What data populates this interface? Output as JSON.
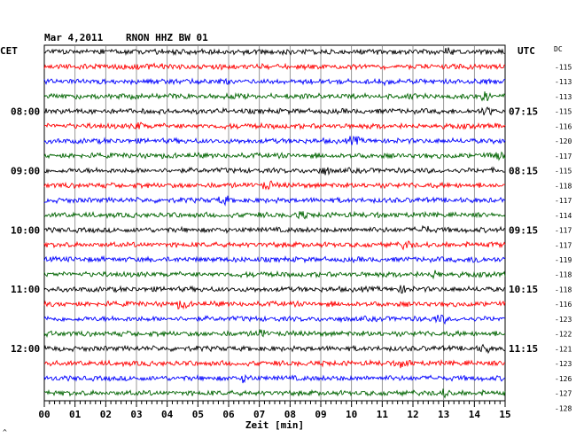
{
  "header": {
    "date": "Mar 4,2011",
    "station": "RNON HHZ BW 01",
    "left_zone": "CET",
    "right_zone": "UTC",
    "dc_label": "DC"
  },
  "chart_data": {
    "type": "line",
    "title": "Mar 4,2011   RNON HHZ BW 01",
    "xlabel": "Zeit [min]",
    "xlim": [
      0,
      15
    ],
    "x_ticks": [
      "00",
      "01",
      "02",
      "03",
      "04",
      "05",
      "06",
      "07",
      "08",
      "09",
      "10",
      "11",
      "12",
      "13",
      "14",
      "15"
    ],
    "traces_per_hour": 4,
    "trace_colors": [
      "#000000",
      "#ff0000",
      "#0000ff",
      "#006400"
    ],
    "dc_offsets": [
      -115,
      -113,
      -113,
      -115,
      -116,
      -120,
      -117,
      -115,
      -118,
      -117,
      -114,
      -117,
      -117,
      -119,
      -118,
      -118,
      -116,
      -123,
      -122,
      -121,
      -123,
      -126,
      -127,
      -128
    ],
    "left_hour_labels": [
      "08:00",
      "09:00",
      "10:00",
      "11:00",
      "12:00"
    ],
    "right_hour_labels": [
      "07:15",
      "08:15",
      "09:15",
      "10:15",
      "11:15"
    ],
    "grid": true
  },
  "footer_mark": "^"
}
